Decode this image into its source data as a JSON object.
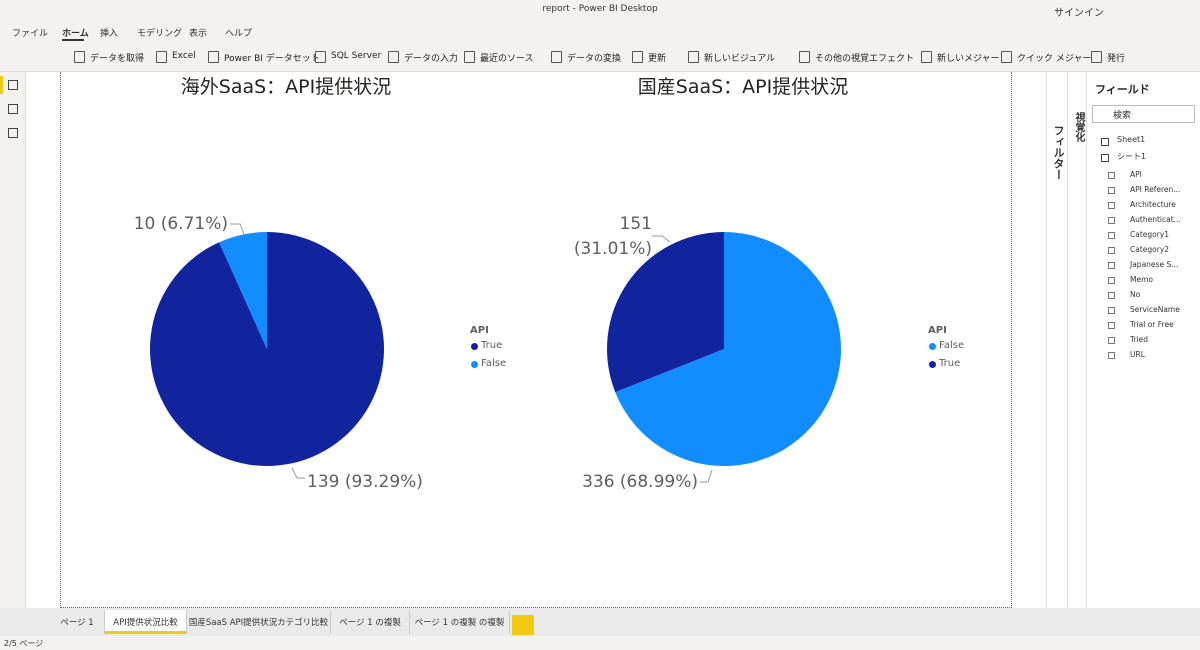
{
  "window": {
    "title": "report - Power BI Desktop",
    "signin": "サインイン"
  },
  "ribbon_tabs": [
    "ファイル",
    "ホーム",
    "挿入",
    "モデリング",
    "表示",
    "ヘルプ"
  ],
  "toolbar": [
    "データを取得",
    "Excel",
    "Power BI データセット",
    "SQL Server",
    "データの入力",
    "最近のソース",
    "データの変換",
    "更新",
    "新しいビジュアル",
    "その他の視覚エフェクト",
    "新しいメジャー",
    "クイック メジャー",
    "発行"
  ],
  "chart_data": [
    {
      "type": "pie",
      "title": "海外SaaS：API提供状況",
      "legend_title": "API",
      "categories": [
        "True",
        "False"
      ],
      "values": [
        139,
        10
      ],
      "value_labels": [
        "139 (93.29%)",
        "10 (6.71%)"
      ],
      "colors": [
        "#12239e",
        "#118dff"
      ]
    },
    {
      "type": "pie",
      "title": "国産SaaS：API提供状況",
      "legend_title": "API",
      "categories": [
        "False",
        "True"
      ],
      "values": [
        336,
        151
      ],
      "value_labels": [
        "336 (68.99%)",
        "151 (31.01%)"
      ],
      "colors": [
        "#118dff",
        "#12239e"
      ]
    }
  ],
  "side_panes": {
    "filters": "フィルター",
    "visualizations": "視覚化"
  },
  "fields_pane": {
    "title": "フィールド",
    "search": "検索",
    "tables": [
      "Sheet1",
      "シート1"
    ],
    "fields": [
      "API",
      "API Referen...",
      "Architecture",
      "Authenticat...",
      "Category1",
      "Category2",
      "Japanese S...",
      "Memo",
      "No",
      "ServiceName",
      "Trial or Free",
      "Tried",
      "URL"
    ]
  },
  "page_tabs": [
    "ページ 1",
    "API提供状況比較",
    "国産SaaS API提供状況カテゴリ比較",
    "ページ 1 の複製",
    "ページ 1 の複製 の複製"
  ],
  "status": "2/5 ページ"
}
